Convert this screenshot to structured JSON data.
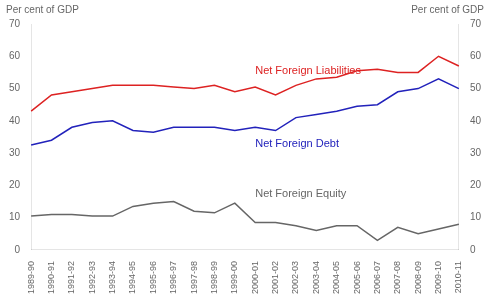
{
  "chart_data": {
    "type": "line",
    "categories": [
      "1989-90",
      "1990-91",
      "1991-92",
      "1992-93",
      "1993-94",
      "1994-95",
      "1995-96",
      "1996-97",
      "1997-98",
      "1998-99",
      "1999-00",
      "2000-01",
      "2001-02",
      "2002-03",
      "2003-04",
      "2004-05",
      "2005-06",
      "2006-07",
      "2007-08",
      "2008-09",
      "2009-10",
      "2010-11"
    ],
    "series": [
      {
        "name": "Net Foreign Liabilities",
        "color": "#dd2222",
        "values": [
          43,
          48,
          49,
          50,
          51,
          51,
          51,
          50.5,
          50,
          51,
          49,
          50.5,
          48,
          51,
          53,
          53.5,
          55.5,
          56,
          55,
          55,
          60,
          57
        ]
      },
      {
        "name": "Net Foreign Debt",
        "color": "#2222bb",
        "values": [
          32.5,
          34,
          38,
          39.5,
          40,
          37,
          36.5,
          38,
          38,
          38,
          37,
          38,
          37,
          41,
          42,
          43,
          44.5,
          45,
          49,
          50,
          53,
          50
        ]
      },
      {
        "name": "Net Foreign Equity",
        "color": "#666666",
        "values": [
          10.5,
          11,
          11,
          10.5,
          10.5,
          13.5,
          14.5,
          15,
          12,
          11.5,
          14.5,
          8.5,
          8.5,
          7.5,
          6,
          7.5,
          7.5,
          3,
          7,
          5,
          6.5,
          8
        ]
      }
    ],
    "ylabel": "Per cent of GDP",
    "y2label": "Per cent of GDP",
    "ylim": [
      0,
      70
    ],
    "yticks": [
      0,
      10,
      20,
      30,
      40,
      50,
      60,
      70
    ],
    "y2lim": [
      0,
      70
    ],
    "y2ticks": [
      0,
      10,
      20,
      30,
      40,
      50,
      60,
      70
    ],
    "grid": false,
    "annotations": [
      {
        "text": "Net Foreign Liabilities",
        "x": "2000-01",
        "y": 54.5,
        "color": "#dd2222"
      },
      {
        "text": "Net Foreign Debt",
        "x": "2000-01",
        "y": 32,
        "color": "#2222bb"
      },
      {
        "text": "Net Foreign Equity",
        "x": "2000-01",
        "y": 16.5,
        "color": "#666666"
      }
    ]
  }
}
